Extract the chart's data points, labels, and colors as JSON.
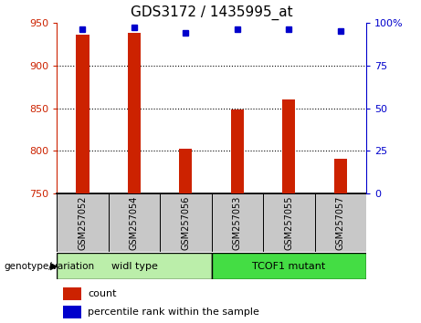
{
  "title": "GDS3172 / 1435995_at",
  "samples": [
    "GSM257052",
    "GSM257054",
    "GSM257056",
    "GSM257053",
    "GSM257055",
    "GSM257057"
  ],
  "counts": [
    936,
    938,
    803,
    849,
    860,
    791
  ],
  "percentile_ranks": [
    96,
    97,
    94,
    96,
    96,
    95
  ],
  "y_min": 750,
  "y_max": 950,
  "y_ticks": [
    750,
    800,
    850,
    900,
    950
  ],
  "y2_ticks": [
    0,
    25,
    50,
    75,
    100
  ],
  "bar_color": "#cc2200",
  "dot_color": "#0000cc",
  "groups": [
    {
      "label": "widl type",
      "indices": [
        0,
        1,
        2
      ],
      "color": "#bbeeaa"
    },
    {
      "label": "TCOF1 mutant",
      "indices": [
        3,
        4,
        5
      ],
      "color": "#44dd44"
    }
  ],
  "genotype_label": "genotype/variation",
  "legend_count_label": "count",
  "legend_percentile_label": "percentile rank within the sample",
  "tick_label_bg": "#c8c8c8",
  "title_fontsize": 11,
  "axis_fontsize": 8,
  "legend_fontsize": 8,
  "bar_width": 0.25
}
